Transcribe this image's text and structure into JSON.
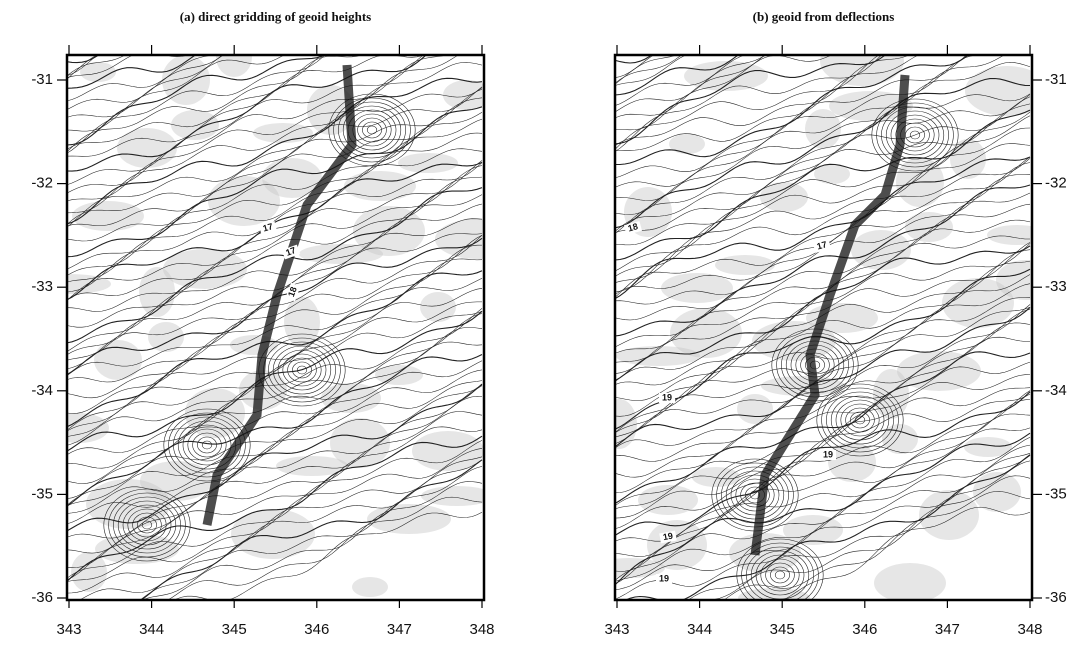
{
  "panels": [
    {
      "title": "(a)  direct gridding of geoid heights",
      "x_tick_labels": [
        "343",
        "344",
        "345",
        "346",
        "347",
        "348"
      ],
      "y_tick_labels": [
        "-31",
        "-32",
        "-33",
        "-34",
        "-35",
        "-36"
      ],
      "contour_labels": [
        "17",
        "17",
        "18"
      ]
    },
    {
      "title": "(b)  geoid from deflections",
      "x_tick_labels": [
        "343",
        "344",
        "345",
        "346",
        "347",
        "348"
      ],
      "y_tick_labels": [
        "-31",
        "-32",
        "-33",
        "-34",
        "-35",
        "-36"
      ],
      "contour_labels": [
        "18",
        "17",
        "19",
        "19",
        "19",
        "19"
      ]
    }
  ]
}
